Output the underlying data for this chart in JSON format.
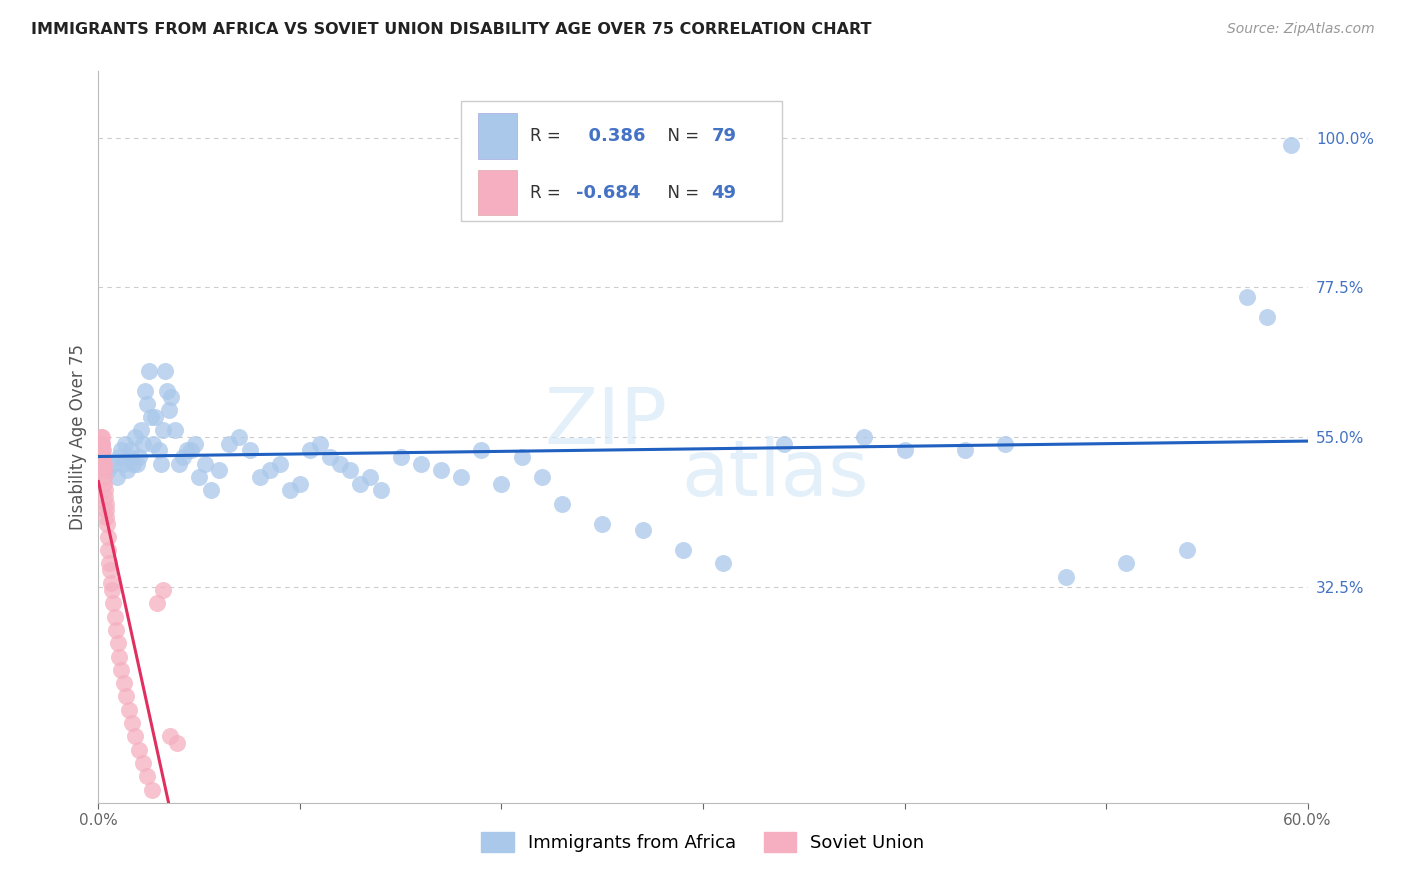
{
  "title": "IMMIGRANTS FROM AFRICA VS SOVIET UNION DISABILITY AGE OVER 75 CORRELATION CHART",
  "source": "Source: ZipAtlas.com",
  "ylabel": "Disability Age Over 75",
  "x_min": 0.0,
  "x_max": 0.6,
  "y_min": 0.0,
  "y_max": 1.1,
  "y_ticks_right": [
    1.0,
    0.775,
    0.55,
    0.325
  ],
  "y_tick_labels_right": [
    "100.0%",
    "77.5%",
    "55.0%",
    "32.5%"
  ],
  "africa_R": 0.386,
  "africa_N": 79,
  "soviet_R": -0.684,
  "soviet_N": 49,
  "africa_color": "#aac8ea",
  "soviet_color": "#f5afc0",
  "africa_line_color": "#2060c0",
  "soviet_line_color": "#e03060",
  "africa_scatter_x": [
    0.005,
    0.007,
    0.009,
    0.01,
    0.011,
    0.012,
    0.013,
    0.014,
    0.015,
    0.016,
    0.017,
    0.018,
    0.019,
    0.02,
    0.021,
    0.022,
    0.023,
    0.024,
    0.025,
    0.026,
    0.027,
    0.028,
    0.03,
    0.031,
    0.032,
    0.033,
    0.034,
    0.035,
    0.036,
    0.038,
    0.04,
    0.042,
    0.044,
    0.046,
    0.048,
    0.05,
    0.053,
    0.056,
    0.06,
    0.065,
    0.07,
    0.075,
    0.08,
    0.085,
    0.09,
    0.095,
    0.1,
    0.105,
    0.11,
    0.115,
    0.12,
    0.125,
    0.13,
    0.135,
    0.14,
    0.15,
    0.16,
    0.17,
    0.18,
    0.19,
    0.2,
    0.21,
    0.22,
    0.23,
    0.25,
    0.27,
    0.29,
    0.31,
    0.34,
    0.38,
    0.4,
    0.43,
    0.45,
    0.48,
    0.51,
    0.54,
    0.57,
    0.58,
    0.592
  ],
  "africa_scatter_y": [
    0.5,
    0.51,
    0.49,
    0.52,
    0.53,
    0.51,
    0.54,
    0.5,
    0.52,
    0.53,
    0.51,
    0.55,
    0.51,
    0.52,
    0.56,
    0.54,
    0.62,
    0.6,
    0.65,
    0.58,
    0.54,
    0.58,
    0.53,
    0.51,
    0.56,
    0.65,
    0.62,
    0.59,
    0.61,
    0.56,
    0.51,
    0.52,
    0.53,
    0.53,
    0.54,
    0.49,
    0.51,
    0.47,
    0.5,
    0.54,
    0.55,
    0.53,
    0.49,
    0.5,
    0.51,
    0.47,
    0.48,
    0.53,
    0.54,
    0.52,
    0.51,
    0.5,
    0.48,
    0.49,
    0.47,
    0.52,
    0.51,
    0.5,
    0.49,
    0.53,
    0.48,
    0.52,
    0.49,
    0.45,
    0.42,
    0.41,
    0.38,
    0.36,
    0.54,
    0.55,
    0.53,
    0.53,
    0.54,
    0.34,
    0.36,
    0.38,
    0.76,
    0.73,
    0.99
  ],
  "soviet_scatter_x": [
    0.001,
    0.0012,
    0.0014,
    0.0015,
    0.0016,
    0.0017,
    0.0018,
    0.0019,
    0.002,
    0.0021,
    0.0022,
    0.0023,
    0.0024,
    0.0025,
    0.0026,
    0.0027,
    0.0028,
    0.003,
    0.0032,
    0.0034,
    0.0036,
    0.0038,
    0.004,
    0.0043,
    0.0046,
    0.005,
    0.0054,
    0.0058,
    0.0063,
    0.0068,
    0.0074,
    0.008,
    0.0087,
    0.0095,
    0.0104,
    0.0114,
    0.0125,
    0.0137,
    0.015,
    0.0165,
    0.0182,
    0.02,
    0.022,
    0.0242,
    0.0266,
    0.0293,
    0.0322,
    0.0354,
    0.039
  ],
  "soviet_scatter_y": [
    0.51,
    0.53,
    0.54,
    0.55,
    0.54,
    0.53,
    0.52,
    0.54,
    0.55,
    0.52,
    0.53,
    0.51,
    0.52,
    0.5,
    0.51,
    0.49,
    0.5,
    0.48,
    0.47,
    0.46,
    0.45,
    0.44,
    0.43,
    0.42,
    0.4,
    0.38,
    0.36,
    0.35,
    0.33,
    0.32,
    0.3,
    0.28,
    0.26,
    0.24,
    0.22,
    0.2,
    0.18,
    0.16,
    0.14,
    0.12,
    0.1,
    0.08,
    0.06,
    0.04,
    0.02,
    0.3,
    0.32,
    0.1,
    0.09
  ],
  "watermark_top": "ZIP",
  "watermark_bot": "atlas",
  "legend_labels": [
    "Immigrants from Africa",
    "Soviet Union"
  ],
  "background_color": "#ffffff",
  "grid_color": "#cccccc"
}
